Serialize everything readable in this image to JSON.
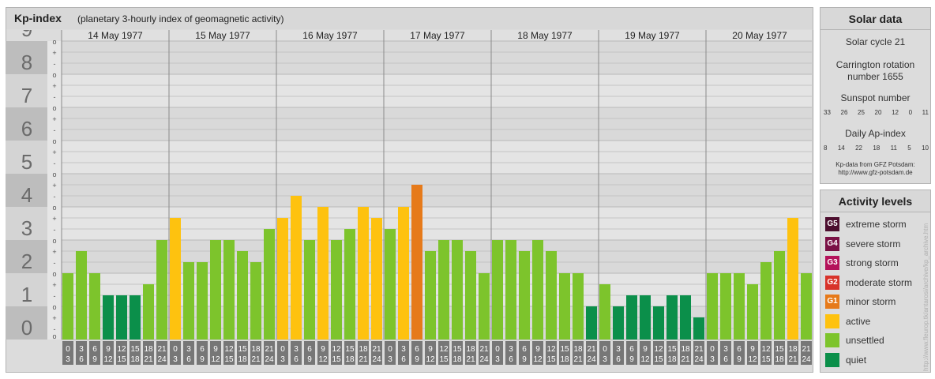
{
  "header": {
    "title": "Kp-index",
    "subtitle": "(planetary 3-hourly index of geomagnetic activity)"
  },
  "chart_data": {
    "type": "bar",
    "title": "Kp-index",
    "subtitle": "(planetary 3-hourly index of geomagnetic activity)",
    "ylim": [
      0,
      9
    ],
    "y_ticks": [
      "0",
      "1",
      "2",
      "3",
      "4",
      "5",
      "6",
      "7",
      "8",
      "9"
    ],
    "sub_ticks": [
      "-",
      "+",
      "o"
    ],
    "days": [
      "14 May 1977",
      "15 May 1977",
      "16 May 1977",
      "17 May 1977",
      "18 May 1977",
      "19 May 1977",
      "20 May 1977"
    ],
    "interval_starts": [
      "0",
      "3",
      "6",
      "9",
      "12",
      "15",
      "18",
      "21"
    ],
    "interval_ends": [
      "3",
      "6",
      "9",
      "12",
      "15",
      "18",
      "21",
      "24"
    ],
    "values": [
      2.0,
      2.667,
      2.0,
      1.333,
      1.333,
      1.333,
      1.667,
      3.0,
      3.667,
      2.333,
      2.333,
      3.0,
      3.0,
      2.667,
      2.333,
      3.333,
      3.667,
      4.333,
      3.0,
      4.0,
      3.0,
      3.333,
      4.0,
      3.667,
      3.333,
      4.0,
      4.667,
      2.667,
      3.0,
      3.0,
      2.667,
      2.0,
      3.0,
      3.0,
      2.667,
      3.0,
      2.667,
      2.0,
      2.0,
      1.0,
      1.667,
      1.0,
      1.333,
      1.333,
      1.0,
      1.333,
      1.333,
      0.667,
      2.0,
      2.0,
      2.0,
      1.667,
      2.333,
      2.667,
      3.667,
      2.0
    ],
    "levels": [
      "unsettled",
      "unsettled",
      "unsettled",
      "quiet",
      "quiet",
      "quiet",
      "unsettled",
      "unsettled",
      "active",
      "unsettled",
      "unsettled",
      "unsettled",
      "unsettled",
      "unsettled",
      "unsettled",
      "unsettled",
      "active",
      "active",
      "unsettled",
      "active",
      "unsettled",
      "unsettled",
      "active",
      "active",
      "unsettled",
      "active",
      "minor",
      "unsettled",
      "unsettled",
      "unsettled",
      "unsettled",
      "unsettled",
      "unsettled",
      "unsettled",
      "unsettled",
      "unsettled",
      "unsettled",
      "unsettled",
      "unsettled",
      "quiet",
      "unsettled",
      "quiet",
      "quiet",
      "quiet",
      "quiet",
      "quiet",
      "quiet",
      "quiet",
      "unsettled",
      "unsettled",
      "unsettled",
      "unsettled",
      "unsettled",
      "unsettled",
      "active",
      "unsettled"
    ],
    "level_colors": {
      "quiet": "#0b8f4a",
      "unsettled": "#7dc42c",
      "active": "#fec20f",
      "minor": "#e67a1a"
    }
  },
  "solar_data": {
    "title": "Solar data",
    "cycle": "Solar cycle 21",
    "carrington_line1": "Carrington rotation",
    "carrington_line2": "number 1655",
    "sunspot_title": "Sunspot number",
    "sunspot_values": [
      "33",
      "26",
      "25",
      "20",
      "12",
      "0",
      "11"
    ],
    "ap_title": "Daily Ap-index",
    "ap_values": [
      "8",
      "14",
      "22",
      "18",
      "11",
      "5",
      "10"
    ],
    "credit_line1": "Kp-data from GFZ Potsdam:",
    "credit_line2": "http://www.gfz-potsdam.de"
  },
  "activity_levels": {
    "title": "Activity levels",
    "items": [
      {
        "code": "G5",
        "label": "extreme storm",
        "color": "#4c0e2e"
      },
      {
        "code": "G4",
        "label": "severe storm",
        "color": "#7a1145"
      },
      {
        "code": "G3",
        "label": "strong storm",
        "color": "#b4125a"
      },
      {
        "code": "G2",
        "label": "moderate storm",
        "color": "#d8332a"
      },
      {
        "code": "G1",
        "label": "minor storm",
        "color": "#e67a1a"
      },
      {
        "code": "",
        "label": "active",
        "color": "#fec20f"
      },
      {
        "code": "",
        "label": "unsettled",
        "color": "#7dc42c"
      },
      {
        "code": "",
        "label": "quiet",
        "color": "#0b8f4a"
      }
    ]
  },
  "watermark": "http://www.fleurop.tk/antarosi/archive/kp_archive.htm"
}
